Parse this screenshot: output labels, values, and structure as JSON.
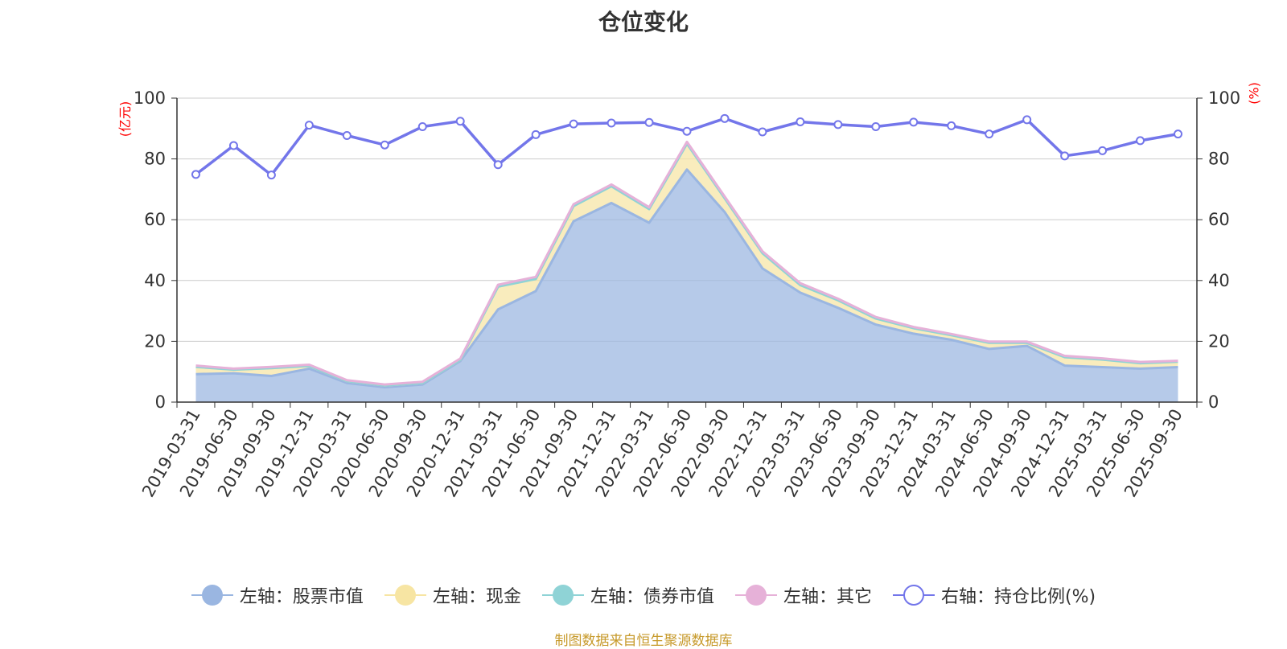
{
  "chart_data": {
    "type": "area",
    "title": "仓位变化",
    "left_axis_unit": "(亿元)",
    "right_axis_unit": "(%)",
    "ylim_left": [
      0,
      100
    ],
    "ylim_right": [
      0,
      100
    ],
    "yticks": [
      "0",
      "20",
      "40",
      "60",
      "80",
      "100"
    ],
    "grid": true,
    "legend_position": "bottom",
    "categories": [
      "2019-03-31",
      "2019-06-30",
      "2019-09-30",
      "2019-12-31",
      "2020-03-31",
      "2020-06-30",
      "2020-09-30",
      "2020-12-31",
      "2021-03-31",
      "2021-06-30",
      "2021-09-30",
      "2021-12-31",
      "2022-03-31",
      "2022-06-30",
      "2022-09-30",
      "2022-12-31",
      "2023-03-31",
      "2023-06-30",
      "2023-09-30",
      "2023-12-31",
      "2024-03-31",
      "2024-06-30",
      "2024-09-30",
      "2024-12-31",
      "2025-03-31",
      "2025-06-30",
      "2025-09-30"
    ],
    "series": [
      {
        "name": "左轴：股票市值",
        "axis": "left",
        "color": "#9ab6e1",
        "values": [
          9.2,
          9.5,
          8.6,
          11.0,
          6.3,
          4.9,
          5.8,
          13.5,
          30.5,
          36.5,
          59.5,
          65.5,
          59.0,
          76.5,
          62.5,
          44.0,
          36.0,
          31.0,
          25.5,
          22.5,
          20.5,
          17.5,
          18.5,
          12.0,
          11.5,
          11.0,
          11.5
        ]
      },
      {
        "name": "左轴：现金",
        "axis": "left",
        "color": "#f7e5a3",
        "values": [
          2.4,
          1.2,
          2.6,
          0.9,
          0.6,
          0.6,
          0.5,
          0.4,
          7.5,
          4.0,
          5.0,
          5.5,
          4.5,
          8.5,
          4.5,
          5.0,
          2.5,
          2.5,
          2.0,
          1.8,
          1.5,
          2.0,
          1.0,
          2.8,
          2.5,
          1.8,
          1.8
        ]
      },
      {
        "name": "左轴：债券市值",
        "axis": "left",
        "color": "#8fd3d6",
        "values": [
          0,
          0,
          0,
          0,
          0,
          0,
          0,
          0,
          0,
          0,
          0,
          0,
          0,
          0,
          0,
          0,
          0,
          0,
          0,
          0,
          0,
          0,
          0,
          0,
          0,
          0,
          0
        ]
      },
      {
        "name": "左轴：其它",
        "axis": "left",
        "color": "#e6b1d8",
        "values": [
          0.4,
          0.3,
          0.4,
          0.4,
          0.3,
          0.3,
          0.4,
          0.4,
          0.6,
          0.7,
          0.6,
          0.6,
          0.6,
          0.6,
          0.6,
          0.6,
          0.6,
          0.5,
          0.5,
          0.4,
          0.4,
          0.4,
          0.4,
          0.4,
          0.4,
          0.4,
          0.3
        ]
      },
      {
        "name": "右轴：持仓比例(%)",
        "axis": "right",
        "color": "#7376ea",
        "values": [
          74.9,
          84.4,
          74.7,
          91.1,
          87.7,
          84.6,
          90.6,
          92.4,
          78.1,
          88.0,
          91.5,
          91.8,
          92.0,
          89.1,
          93.3,
          88.9,
          92.2,
          91.3,
          90.6,
          92.1,
          90.9,
          88.2,
          92.9,
          81.0,
          82.7,
          86.0,
          88.2
        ]
      }
    ],
    "source_note": "制图数据来自恒生聚源数据库"
  }
}
